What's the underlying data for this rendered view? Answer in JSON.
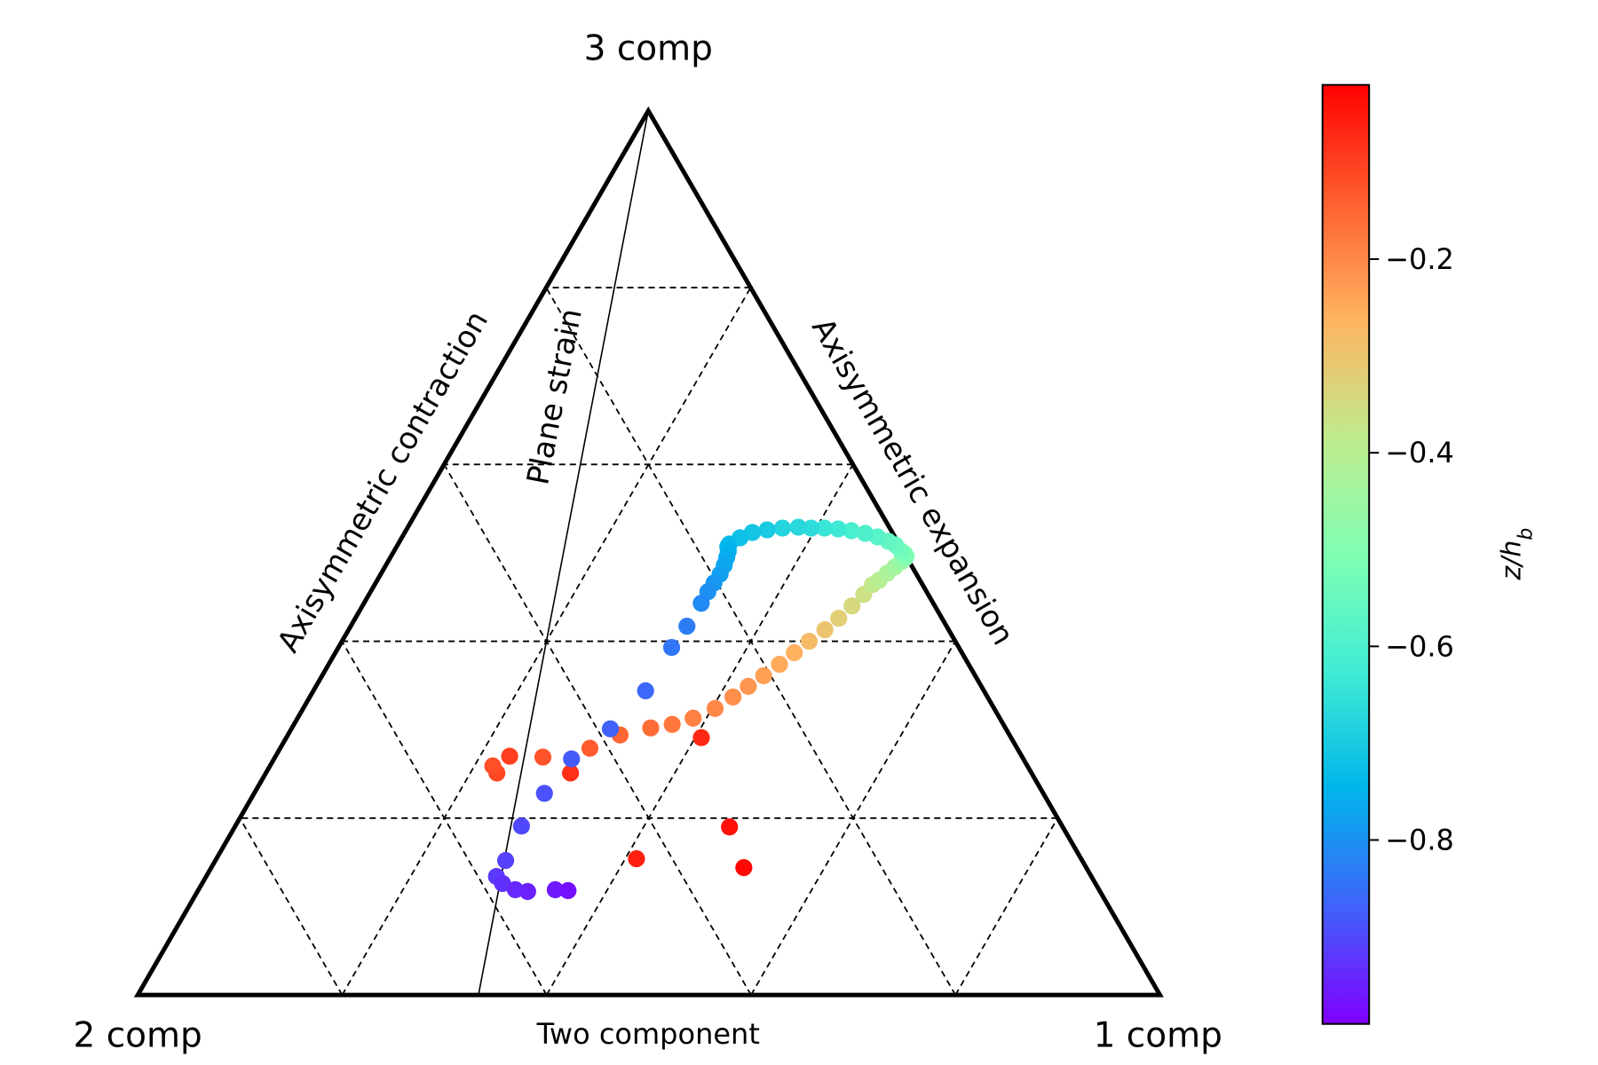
{
  "chart_data": {
    "type": "scatter",
    "plot_kind": "barycentric triangle (anisotropy invariant map)",
    "corner_labels": {
      "top": "3 comp",
      "left": "2 comp",
      "right": "1 comp"
    },
    "edge_labels": {
      "left": "Axisymmetric contraction",
      "right": "Axisymmetric expansion",
      "bottom": "Two component"
    },
    "inner_line_label": "Plane strain",
    "grid": true,
    "grid_fractions": [
      0.2,
      0.4,
      0.6,
      0.8
    ],
    "colorbar": {
      "label": "z/h_b",
      "colormap": "rainbow",
      "range": [
        -0.99,
        -0.02
      ],
      "ticks": [
        -0.8,
        -0.6,
        -0.4,
        -0.2
      ],
      "tick_labels": [
        "−0.8",
        "−0.6",
        "−0.4",
        "−0.2"
      ]
    },
    "series": [
      {
        "coords": "barycentric (w_1comp, w_2comp, w_3comp)",
        "points": [
          [
            0.521,
            0.335,
            0.144,
            -0.03
          ],
          [
            0.484,
            0.326,
            0.19,
            -0.04
          ],
          [
            0.411,
            0.435,
            0.154,
            -0.06
          ],
          [
            0.406,
            0.303,
            0.291,
            -0.07
          ],
          [
            0.298,
            0.451,
            0.251,
            -0.08
          ],
          [
            0.229,
            0.501,
            0.27,
            -0.1
          ],
          [
            0.226,
            0.523,
            0.251,
            -0.11
          ],
          [
            0.218,
            0.523,
            0.259,
            -0.12
          ],
          [
            0.262,
            0.469,
            0.269,
            -0.125
          ],
          [
            0.303,
            0.418,
            0.279,
            -0.135
          ],
          [
            0.325,
            0.381,
            0.294,
            -0.15
          ],
          [
            0.351,
            0.347,
            0.302,
            -0.16
          ],
          [
            0.37,
            0.324,
            0.306,
            -0.175
          ],
          [
            0.387,
            0.3,
            0.313,
            -0.19
          ],
          [
            0.403,
            0.273,
            0.324,
            -0.2
          ],
          [
            0.414,
            0.249,
            0.337,
            -0.21
          ],
          [
            0.423,
            0.228,
            0.349,
            -0.22
          ],
          [
            0.432,
            0.207,
            0.361,
            -0.235
          ],
          [
            0.441,
            0.185,
            0.374,
            -0.25
          ],
          [
            0.449,
            0.164,
            0.387,
            -0.26
          ],
          [
            0.457,
            0.143,
            0.4,
            -0.28
          ],
          [
            0.466,
            0.121,
            0.413,
            -0.3
          ],
          [
            0.473,
            0.101,
            0.426,
            -0.32
          ],
          [
            0.479,
            0.081,
            0.44,
            -0.34
          ],
          [
            0.484,
            0.063,
            0.453,
            -0.36
          ],
          [
            0.487,
            0.049,
            0.464,
            -0.38
          ],
          [
            0.491,
            0.04,
            0.469,
            -0.4
          ],
          [
            0.495,
            0.028,
            0.477,
            -0.42
          ],
          [
            0.499,
            0.017,
            0.484,
            -0.44
          ],
          [
            0.502,
            0.008,
            0.49,
            -0.46
          ],
          [
            0.504,
            0.002,
            0.494,
            -0.48
          ],
          [
            0.504,
            0.0,
            0.496,
            -0.5
          ],
          [
            0.501,
            0.0,
            0.499,
            -0.51
          ],
          [
            0.496,
            0.002,
            0.502,
            -0.53
          ],
          [
            0.487,
            0.004,
            0.509,
            -0.55
          ],
          [
            0.478,
            0.009,
            0.513,
            -0.56
          ],
          [
            0.465,
            0.017,
            0.518,
            -0.58
          ],
          [
            0.451,
            0.027,
            0.522,
            -0.6
          ],
          [
            0.436,
            0.039,
            0.525,
            -0.61
          ],
          [
            0.422,
            0.051,
            0.527,
            -0.63
          ],
          [
            0.408,
            0.064,
            0.528,
            -0.64
          ],
          [
            0.395,
            0.077,
            0.528,
            -0.66
          ],
          [
            0.382,
            0.089,
            0.529,
            -0.67
          ],
          [
            0.367,
            0.105,
            0.528,
            -0.68
          ],
          [
            0.353,
            0.121,
            0.526,
            -0.7
          ],
          [
            0.34,
            0.137,
            0.523,
            -0.71
          ],
          [
            0.331,
            0.152,
            0.517,
            -0.72
          ],
          [
            0.324,
            0.166,
            0.51,
            -0.73
          ],
          [
            0.324,
            0.169,
            0.507,
            -0.74
          ],
          [
            0.327,
            0.171,
            0.502,
            -0.75
          ],
          [
            0.329,
            0.176,
            0.495,
            -0.76
          ],
          [
            0.331,
            0.183,
            0.486,
            -0.77
          ],
          [
            0.332,
            0.192,
            0.476,
            -0.78
          ],
          [
            0.331,
            0.203,
            0.466,
            -0.79
          ],
          [
            0.33,
            0.214,
            0.456,
            -0.8
          ],
          [
            0.33,
            0.227,
            0.443,
            -0.81
          ],
          [
            0.329,
            0.254,
            0.417,
            -0.83
          ],
          [
            0.326,
            0.281,
            0.393,
            -0.84
          ],
          [
            0.325,
            0.331,
            0.344,
            -0.86
          ],
          [
            0.312,
            0.387,
            0.301,
            -0.87
          ],
          [
            0.291,
            0.442,
            0.267,
            -0.88
          ],
          [
            0.284,
            0.488,
            0.228,
            -0.89
          ],
          [
            0.28,
            0.529,
            0.191,
            -0.9
          ],
          [
            0.284,
            0.564,
            0.152,
            -0.91
          ],
          [
            0.284,
            0.582,
            0.134,
            -0.92
          ],
          [
            0.294,
            0.58,
            0.126,
            -0.93
          ],
          [
            0.31,
            0.571,
            0.119,
            -0.94
          ],
          [
            0.323,
            0.56,
            0.117,
            -0.95
          ],
          [
            0.349,
            0.532,
            0.119,
            -0.96
          ],
          [
            0.362,
            0.52,
            0.118,
            -0.97
          ]
        ]
      }
    ]
  }
}
